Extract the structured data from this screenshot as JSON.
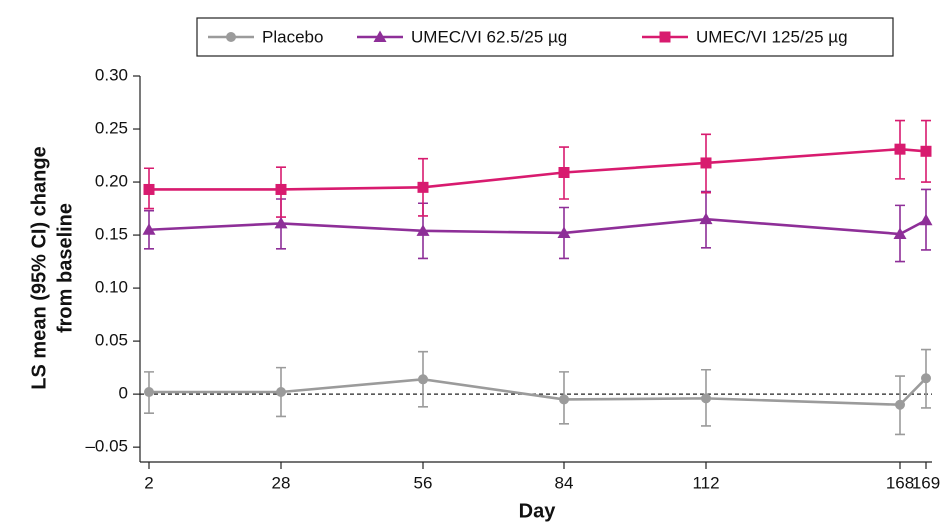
{
  "chart_data": {
    "type": "line",
    "xlabel": "Day",
    "ylabel": [
      "LS mean (95% CI) change",
      "from baseline"
    ],
    "categories": [
      "2",
      "28",
      "56",
      "84",
      "112",
      "168",
      "169"
    ],
    "series": [
      {
        "name": "Placebo",
        "color": "#9b9b9b",
        "marker": "circle",
        "values": [
          0.002,
          0.002,
          0.014,
          -0.005,
          -0.004,
          -0.01,
          0.015
        ],
        "lower": [
          -0.018,
          -0.021,
          -0.012,
          -0.028,
          -0.03,
          -0.038,
          -0.013
        ],
        "upper": [
          0.021,
          0.025,
          0.04,
          0.021,
          0.023,
          0.017,
          0.042
        ]
      },
      {
        "name": "UMEC/VI 62.5/25 µg",
        "color": "#8e2f98",
        "marker": "triangle",
        "values": [
          0.155,
          0.161,
          0.154,
          0.152,
          0.165,
          0.151,
          0.164
        ],
        "lower": [
          0.137,
          0.137,
          0.128,
          0.128,
          0.138,
          0.125,
          0.136
        ],
        "upper": [
          0.173,
          0.184,
          0.18,
          0.176,
          0.191,
          0.178,
          0.193
        ]
      },
      {
        "name": "UMEC/VI 125/25 µg",
        "color": "#d81b6f",
        "marker": "square",
        "values": [
          0.193,
          0.193,
          0.195,
          0.209,
          0.218,
          0.231,
          0.229
        ],
        "lower": [
          0.175,
          0.167,
          0.168,
          0.184,
          0.19,
          0.203,
          0.2
        ],
        "upper": [
          0.213,
          0.214,
          0.222,
          0.233,
          0.245,
          0.258,
          0.258
        ]
      }
    ],
    "ylim": [
      -0.064,
      0.3
    ],
    "yticks": [
      {
        "value": 0.3,
        "label": "0.30"
      },
      0.25,
      {
        "value": 0.2,
        "label": "0.20"
      },
      0.15,
      {
        "value": 0.1,
        "label": "0.10"
      },
      0.05,
      0,
      {
        "value": -0.05,
        "label": "–0.05"
      }
    ],
    "hline": 0,
    "legend": "top"
  }
}
